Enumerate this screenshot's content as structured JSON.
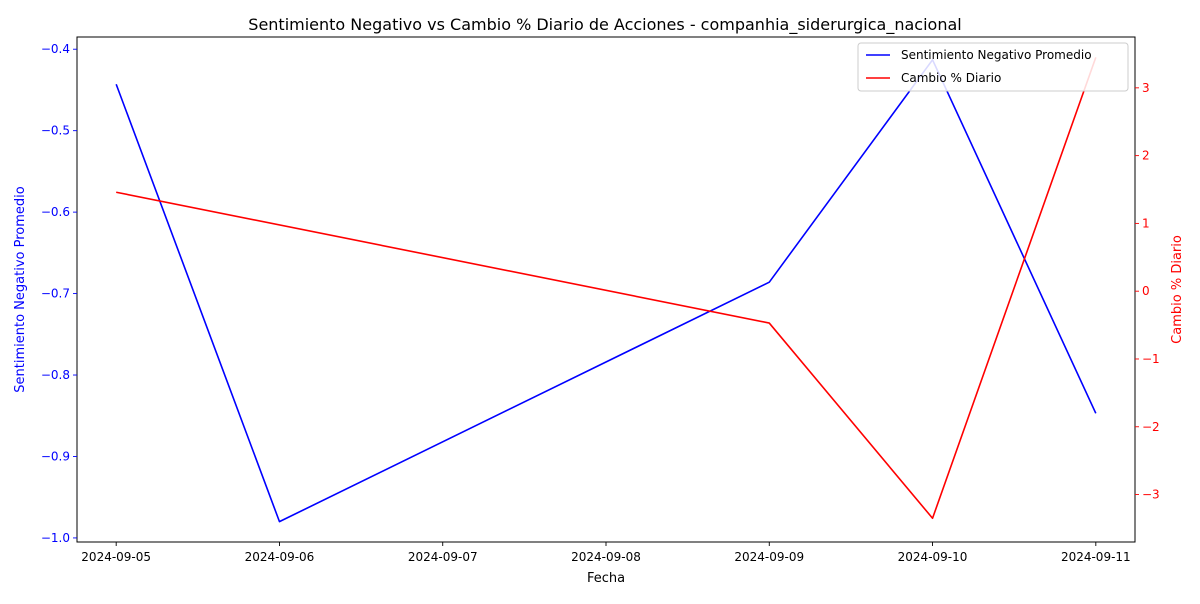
{
  "chart_data": {
    "type": "line",
    "title": "Sentimiento Negativo vs Cambio % Diario de Acciones - companhia_siderurgica_nacional",
    "xlabel": "Fecha",
    "x": [
      "2024-09-05",
      "2024-09-06",
      "2024-09-07",
      "2024-09-08",
      "2024-09-09",
      "2024-09-10",
      "2024-09-11"
    ],
    "y_left": {
      "label": "Sentimiento Negativo Promedio",
      "color": "#0000ff",
      "ylim": [
        -1.005,
        -0.385
      ],
      "ticks": [
        -1.0,
        -0.9,
        -0.8,
        -0.7,
        -0.6,
        -0.5,
        -0.4
      ],
      "tick_labels": [
        "−1.0",
        "−0.9",
        "−0.8",
        "−0.7",
        "−0.6",
        "−0.5",
        "−0.4"
      ]
    },
    "y_right": {
      "label": "Cambio % Diario",
      "color": "#ff0000",
      "ylim": [
        -3.7,
        3.75
      ],
      "ticks": [
        -3,
        -2,
        -1,
        0,
        1,
        2,
        3
      ],
      "tick_labels": [
        "−3",
        "−2",
        "−1",
        "0",
        "1",
        "2",
        "3"
      ]
    },
    "series": [
      {
        "name": "Sentimiento Negativo Promedio",
        "axis": "left",
        "color": "#0000ff",
        "points": [
          {
            "x": "2024-09-05",
            "y": -0.443
          },
          {
            "x": "2024-09-06",
            "y": -0.98
          },
          {
            "x": "2024-09-09",
            "y": -0.686
          },
          {
            "x": "2024-09-10",
            "y": -0.413
          },
          {
            "x": "2024-09-11",
            "y": -0.847
          }
        ]
      },
      {
        "name": "Cambio % Diario",
        "axis": "right",
        "color": "#ff0000",
        "points": [
          {
            "x": "2024-09-05",
            "y": 1.46
          },
          {
            "x": "2024-09-09",
            "y": -0.47
          },
          {
            "x": "2024-09-10",
            "y": -3.35
          },
          {
            "x": "2024-09-11",
            "y": 3.45
          }
        ]
      }
    ],
    "legend": {
      "position": "top-right",
      "entries": [
        "Sentimiento Negativo Promedio",
        "Cambio % Diario"
      ]
    },
    "grid": false
  }
}
